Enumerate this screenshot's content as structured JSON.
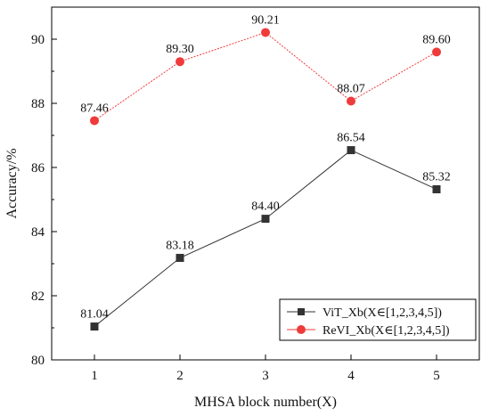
{
  "chart_data": {
    "type": "line",
    "title": "",
    "xlabel": "MHSA block number(X)",
    "ylabel": "Accuracy/%",
    "x": [
      1,
      2,
      3,
      4,
      5
    ],
    "xticks": [
      1,
      2,
      3,
      4,
      5
    ],
    "yticks": [
      80,
      82,
      84,
      86,
      88,
      90
    ],
    "xlim": [
      0.5,
      5.5
    ],
    "ylim": [
      80,
      91
    ],
    "grid": false,
    "legend_position": "bottom-right",
    "series": [
      {
        "name": "ViT_Xb(X∈[1,2,3,4,5])",
        "values": [
          81.04,
          83.18,
          84.4,
          86.54,
          85.32
        ],
        "labels": [
          "81.04",
          "83.18",
          "84.40",
          "86.54",
          "85.32"
        ],
        "color": "#333333",
        "marker": "square"
      },
      {
        "name": "ReVI_Xb(X∈[1,2,3,4,5])",
        "values": [
          87.46,
          89.3,
          90.21,
          88.07,
          89.6
        ],
        "labels": [
          "87.46",
          "89.30",
          "90.21",
          "88.07",
          "89.60"
        ],
        "color": "#ef3b3b",
        "marker": "circle"
      }
    ]
  }
}
